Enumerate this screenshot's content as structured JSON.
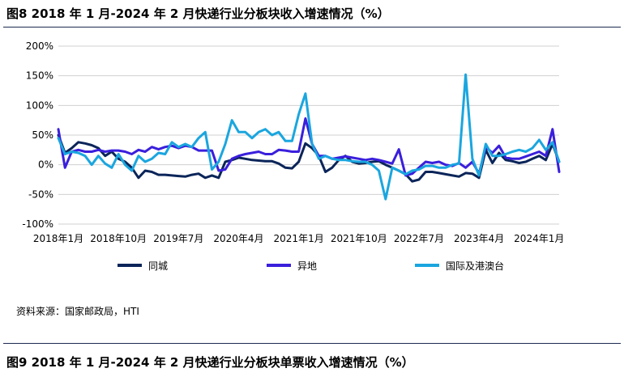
{
  "figure8": {
    "title": "图8 2018 年 1 月-2024 年 2 月快递行业分板块收入增速情况（%）"
  },
  "source": "资料来源：国家邮政局，HTI",
  "figure9": {
    "title": "图9 2018 年 1 月-2024 年 2 月快递行业分板块单票收入增速情况（%）"
  },
  "chart_data": {
    "type": "line",
    "title": "",
    "xlabel": "",
    "ylabel": "",
    "ylim": [
      -100,
      200
    ],
    "yticks": [
      -100,
      -50,
      0,
      50,
      100,
      150,
      200
    ],
    "ytick_labels": [
      "-100%",
      "-50%",
      "0%",
      "50%",
      "100%",
      "150%",
      "200%"
    ],
    "xtick_labels": [
      "2018年1月",
      "2018年10月",
      "2019年7月",
      "2020年4月",
      "2021年1月",
      "2021年10月",
      "2022年7月",
      "2023年4月",
      "2024年1月"
    ],
    "x_start": "2018-01",
    "x_end": "2024-02",
    "grid": "horizontal",
    "legend_position": "bottom",
    "series": [
      {
        "name": "同城",
        "color": "#0b2559",
        "values": [
          50,
          20,
          28,
          38,
          36,
          33,
          28,
          15,
          22,
          10,
          5,
          -5,
          -22,
          -10,
          -12,
          -17,
          -17,
          -18,
          -19,
          -20,
          -17,
          -15,
          -22,
          -18,
          -22,
          5,
          8,
          12,
          10,
          8,
          7,
          6,
          6,
          2,
          -5,
          -6,
          5,
          36,
          28,
          15,
          -12,
          -5,
          8,
          15,
          5,
          2,
          3,
          5,
          6,
          0,
          -5,
          -10,
          -16,
          -28,
          -25,
          -12,
          -12,
          -14,
          -16,
          -18,
          -20,
          -14,
          -15,
          -22,
          25,
          3,
          20,
          8,
          6,
          3,
          5,
          10,
          15,
          8,
          35,
          5
        ]
      },
      {
        "name": "异地",
        "color": "#3a1fdc",
        "values": [
          60,
          -5,
          22,
          25,
          22,
          22,
          25,
          22,
          24,
          24,
          22,
          18,
          25,
          22,
          30,
          26,
          30,
          32,
          28,
          32,
          30,
          24,
          24,
          24,
          -10,
          -8,
          10,
          15,
          18,
          20,
          22,
          18,
          18,
          25,
          24,
          22,
          22,
          78,
          35,
          15,
          15,
          10,
          12,
          14,
          12,
          10,
          8,
          10,
          8,
          5,
          2,
          26,
          -18,
          -15,
          -5,
          5,
          3,
          5,
          0,
          -2,
          3,
          -5,
          5,
          -15,
          30,
          20,
          32,
          12,
          10,
          10,
          14,
          18,
          22,
          15,
          60,
          -12
        ]
      },
      {
        "name": "国际及港澳台",
        "color": "#1aa6df",
        "values": [
          45,
          18,
          22,
          20,
          15,
          0,
          15,
          2,
          -5,
          18,
          0,
          -10,
          15,
          5,
          10,
          20,
          18,
          38,
          30,
          35,
          30,
          45,
          55,
          -8,
          5,
          35,
          75,
          55,
          55,
          45,
          55,
          60,
          50,
          55,
          40,
          40,
          85,
          120,
          35,
          10,
          15,
          10,
          8,
          8,
          6,
          5,
          5,
          0,
          -10,
          -58,
          -5,
          -10,
          -16,
          -10,
          -8,
          -2,
          -2,
          -5,
          -5,
          0,
          2,
          152,
          10,
          -18,
          35,
          15,
          15,
          18,
          22,
          25,
          22,
          28,
          42,
          25,
          38,
          5
        ]
      }
    ]
  }
}
